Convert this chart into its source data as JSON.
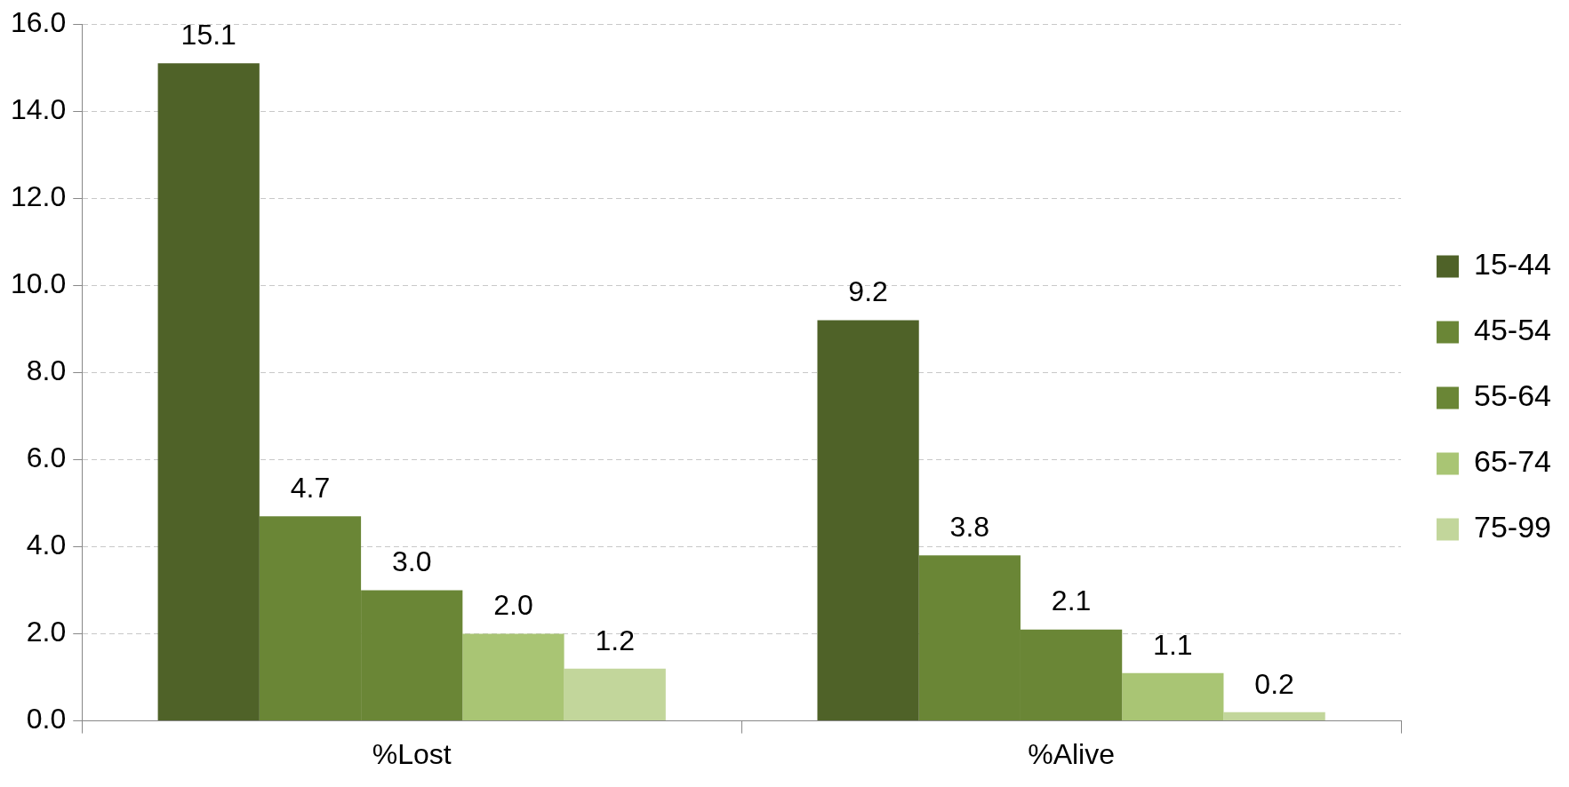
{
  "chart_data": {
    "type": "bar",
    "categories": [
      "%Lost",
      "%Alive"
    ],
    "series": [
      {
        "name": "15-44",
        "color": "#4f6228",
        "values": [
          15.1,
          9.2
        ],
        "value_labels": [
          "15.1",
          "9.2"
        ]
      },
      {
        "name": "45-54",
        "color": "#6a8636",
        "values": [
          4.7,
          3.8
        ],
        "value_labels": [
          "4.7",
          "3.8"
        ]
      },
      {
        "name": "55-64",
        "color": "#6a8636",
        "values": [
          3.0,
          2.1
        ],
        "value_labels": [
          "3.0",
          "2.1"
        ]
      },
      {
        "name": "65-74",
        "color": "#a9c574",
        "values": [
          2.0,
          1.1
        ],
        "value_labels": [
          "2.0",
          "1.1"
        ]
      },
      {
        "name": "75-99",
        "color": "#c2d69b",
        "values": [
          1.2,
          0.2
        ],
        "value_labels": [
          "1.2",
          "0.2"
        ]
      }
    ],
    "ylim": [
      0,
      16
    ],
    "yticks": [
      {
        "value": 0,
        "label": "0.0"
      },
      {
        "value": 2,
        "label": "2.0"
      },
      {
        "value": 4,
        "label": "4.0"
      },
      {
        "value": 6,
        "label": "6.0"
      },
      {
        "value": 8,
        "label": "8.0"
      },
      {
        "value": 10,
        "label": "10.0"
      },
      {
        "value": 12,
        "label": "12.0"
      },
      {
        "value": 14,
        "label": "14.0"
      },
      {
        "value": 16,
        "label": "16.0"
      }
    ],
    "grid": "y",
    "legend": "right"
  }
}
